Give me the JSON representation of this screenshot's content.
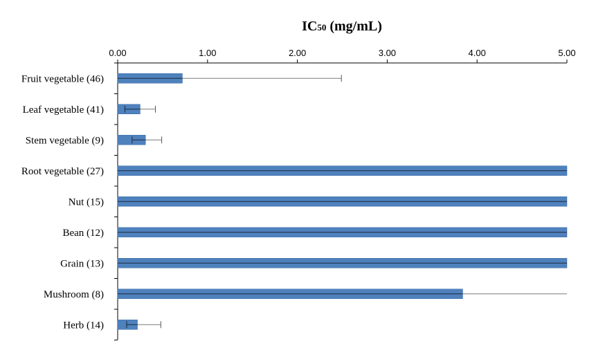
{
  "chart_data": {
    "type": "bar",
    "orientation": "horizontal",
    "title_main": "IC",
    "title_sub": "50",
    "title_unit": "(mg/mL)",
    "xlim": [
      0,
      5
    ],
    "xticks": [
      0,
      1,
      2,
      3,
      4,
      5
    ],
    "xtick_labels": [
      "0.00",
      "1.00",
      "2.00",
      "3.00",
      "4.00",
      "5.00"
    ],
    "x_axis_position": "top",
    "grid": false,
    "categories": [
      "Fruit vegetable (46)",
      "Leaf vegetable (41)",
      "Stem vegetable (9)",
      "Root vegetable (27)",
      "Nut (15)",
      "Bean (12)",
      "Grain (13)",
      "Mushroom (8)",
      "Herb (14)"
    ],
    "values": [
      0.72,
      0.25,
      0.31,
      5.0,
      5.0,
      5.0,
      5.0,
      3.84,
      0.22
    ],
    "error_low": [
      0.72,
      0.17,
      0.15,
      5.0,
      5.0,
      5.0,
      5.0,
      3.84,
      0.12
    ],
    "error_high": [
      1.77,
      0.17,
      0.18,
      0,
      0,
      0,
      0,
      1.16,
      0.26
    ],
    "bar_color": "#4f81bd"
  }
}
